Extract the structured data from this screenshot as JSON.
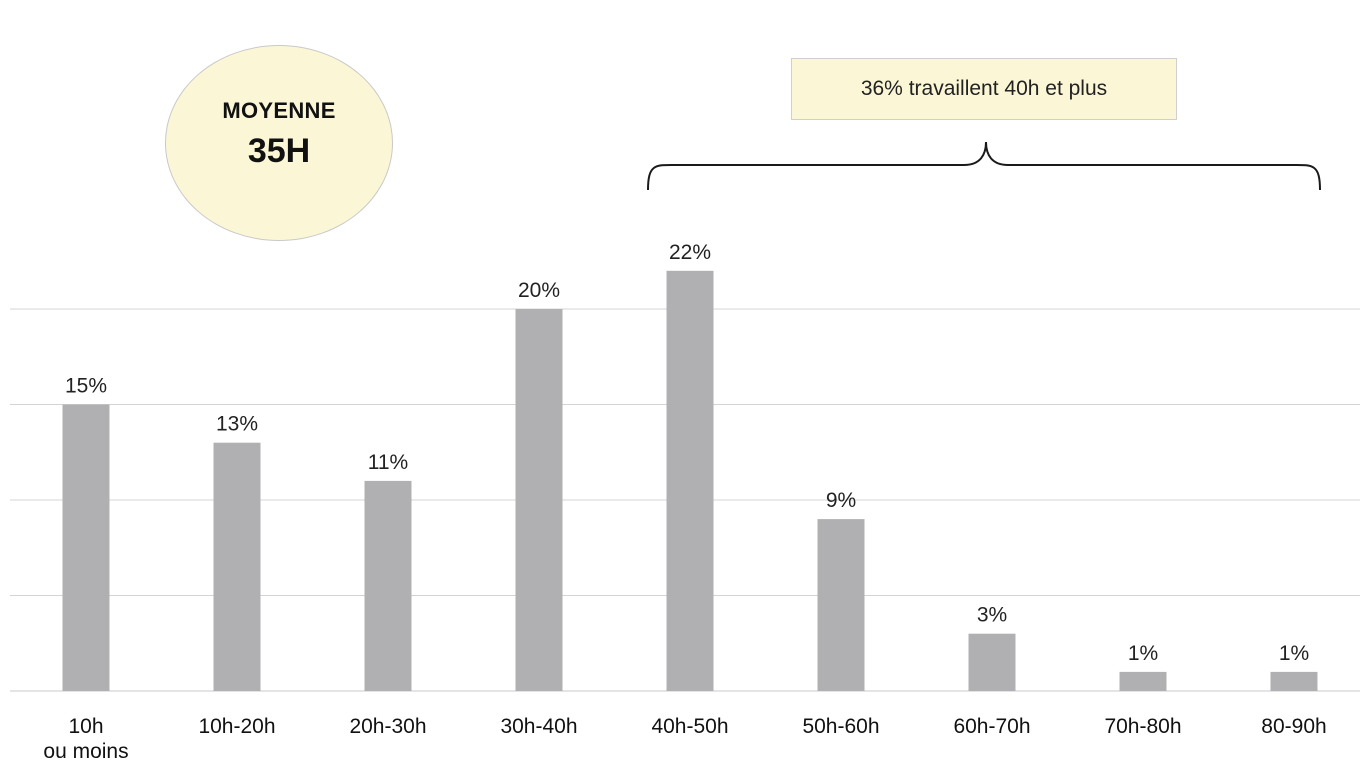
{
  "average": {
    "label": "MOYENNE",
    "value": "35H"
  },
  "callout": {
    "text": "36% travaillent 40h et plus"
  },
  "colors": {
    "bar": "#b0b0b2",
    "grid": "#d4d4d4",
    "highlight_fill": "#fbf7d6"
  },
  "chart_data": {
    "type": "bar",
    "categories": [
      "10h\nou moins",
      "10h-20h",
      "20h-30h",
      "30h-40h",
      "40h-50h",
      "50h-60h",
      "60h-70h",
      "70h-80h",
      "80-90h"
    ],
    "values": [
      15,
      13,
      11,
      20,
      22,
      9,
      3,
      1,
      1
    ],
    "data_labels": [
      "15%",
      "13%",
      "11%",
      "20%",
      "22%",
      "9%",
      "3%",
      "1%",
      "1%"
    ],
    "title": "",
    "xlabel": "",
    "ylabel": "",
    "ylim": [
      0,
      25
    ],
    "grid": true,
    "legend": "none",
    "annotations": [
      {
        "text": "36% travaillent 40h et plus",
        "spans_categories": [
          "40h-50h",
          "50h-60h",
          "60h-70h",
          "70h-80h",
          "80-90h"
        ]
      }
    ]
  }
}
